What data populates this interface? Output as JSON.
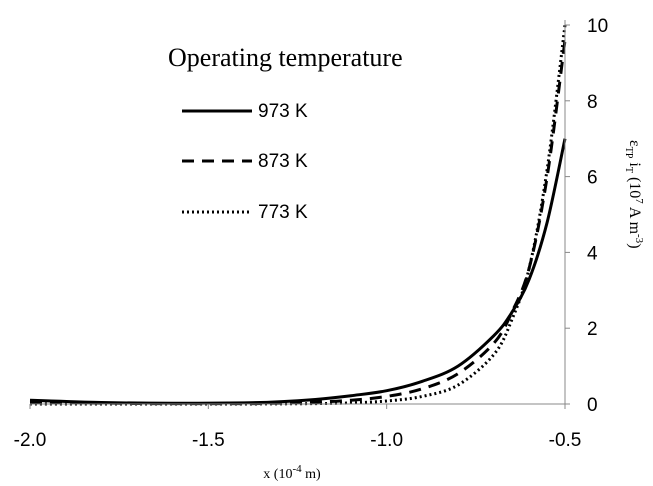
{
  "chart_data": {
    "type": "line",
    "xlabel": {
      "base": "x (10",
      "exp": "-4",
      "unit": " m)"
    },
    "ylabel": {
      "main": "ε",
      "sub": "TP",
      "mid": " i",
      "sub2": "T",
      "tail": " (10",
      "exp": "7",
      "unit": " A m",
      "exp2": "-3",
      "close": ")"
    },
    "xlim": [
      -2.0,
      -0.5
    ],
    "ylim": [
      0,
      10
    ],
    "x_ticks": [
      "-2.0",
      "-1.5",
      "-1.0",
      "-0.5"
    ],
    "y_ticks": [
      "0",
      "2",
      "4",
      "6",
      "8",
      "10"
    ],
    "grid": false,
    "legend_title": "Operating temperature",
    "legend_position": "top-center",
    "series": [
      {
        "name": "973 K",
        "style": "solid",
        "x": [
          -2.0,
          -1.8,
          -1.6,
          -1.4,
          -1.3,
          -1.2,
          -1.1,
          -1.0,
          -0.9,
          -0.8,
          -0.7,
          -0.65,
          -0.6,
          -0.55,
          -0.5
        ],
        "y": [
          0.1,
          0.04,
          0.02,
          0.03,
          0.06,
          0.12,
          0.22,
          0.35,
          0.6,
          1.0,
          1.8,
          2.4,
          3.3,
          4.8,
          7.0
        ]
      },
      {
        "name": "873 K",
        "style": "dashed",
        "x": [
          -2.0,
          -1.8,
          -1.6,
          -1.4,
          -1.3,
          -1.2,
          -1.1,
          -1.0,
          -0.9,
          -0.8,
          -0.7,
          -0.65,
          -0.6,
          -0.55,
          -0.5
        ],
        "y": [
          0.05,
          0.02,
          0.01,
          0.01,
          0.02,
          0.05,
          0.1,
          0.2,
          0.4,
          0.8,
          1.6,
          2.4,
          3.6,
          6.0,
          9.6
        ]
      },
      {
        "name": "773 K",
        "style": "dotted",
        "x": [
          -2.0,
          -1.6,
          -1.4,
          -1.2,
          -1.1,
          -1.0,
          -0.9,
          -0.8,
          -0.7,
          -0.65,
          -0.6,
          -0.55,
          -0.5
        ],
        "y": [
          0.0,
          0.0,
          0.0,
          0.01,
          0.03,
          0.08,
          0.2,
          0.5,
          1.3,
          2.2,
          3.6,
          6.2,
          10.0
        ]
      }
    ]
  }
}
